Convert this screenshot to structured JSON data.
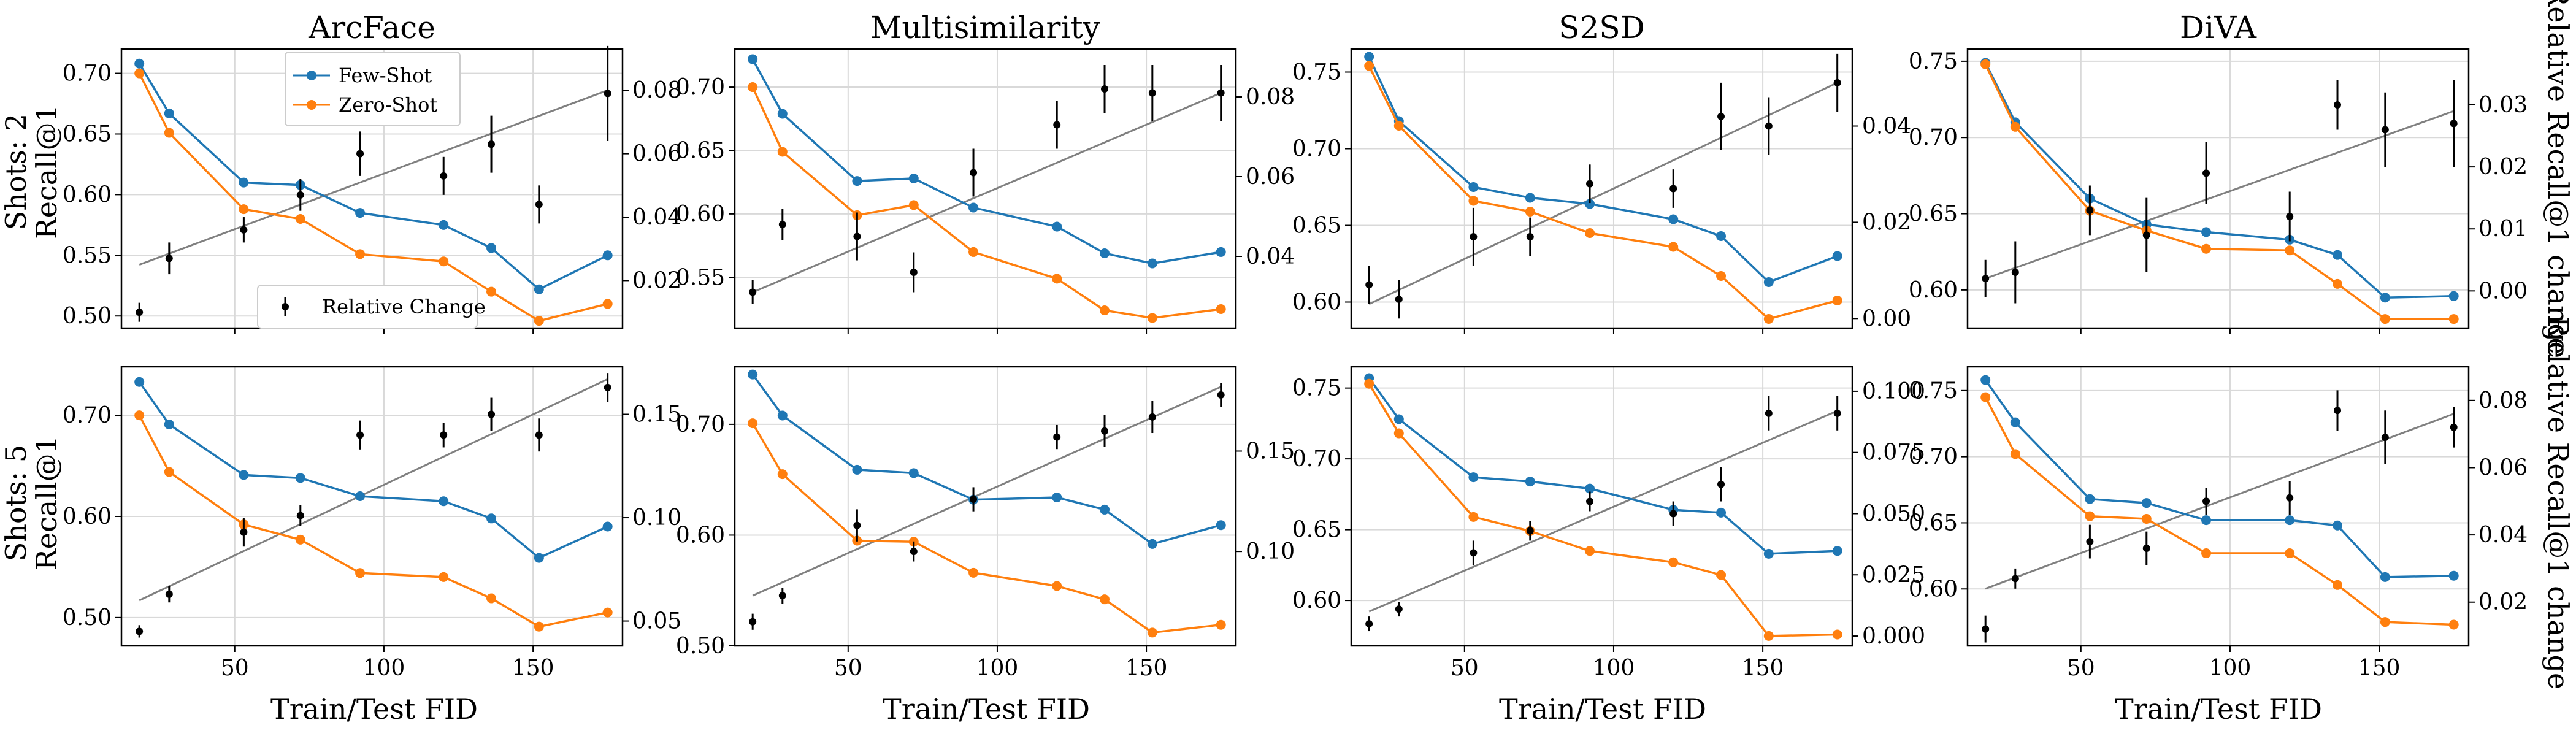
{
  "figure": {
    "colors": {
      "few": "#1f77b4",
      "zero": "#ff7f0e",
      "fit": "#808080",
      "points": "#000000",
      "grid": "#d9d9d9"
    },
    "x_label": "Train/Test FID",
    "x_ticks": [
      50,
      100,
      150
    ],
    "x_range": [
      12,
      180
    ],
    "row_labels": [
      [
        "Shots: 2",
        "Recall@1"
      ],
      [
        "Shots: 5",
        "Recall@1"
      ]
    ],
    "right_axis_label": "Relative Recall@1 change",
    "legend": {
      "few": "Few-Shot",
      "zero": "Zero-Shot",
      "rel": "Relative Change"
    }
  },
  "chart_data": [
    {
      "type": "line",
      "title": "ArcFace",
      "row": 0,
      "col": 0,
      "x": [
        18,
        28,
        53,
        72,
        92,
        120,
        136,
        152,
        175
      ],
      "series": [
        {
          "name": "Few-Shot",
          "values": [
            0.708,
            0.667,
            0.61,
            0.608,
            0.585,
            0.575,
            0.556,
            0.522,
            0.55
          ]
        },
        {
          "name": "Zero-Shot",
          "values": [
            0.7,
            0.651,
            0.588,
            0.58,
            0.551,
            0.545,
            0.52,
            0.496,
            0.51
          ]
        }
      ],
      "relative_change": {
        "name": "Relative Change",
        "values": [
          0.01,
          0.027,
          0.036,
          0.047,
          0.06,
          0.053,
          0.063,
          0.044,
          0.079
        ],
        "errors": [
          0.003,
          0.005,
          0.004,
          0.005,
          0.007,
          0.006,
          0.009,
          0.006,
          0.015
        ]
      },
      "fit": [
        0.025,
        0.08
      ],
      "ylim": [
        0.49,
        0.72
      ],
      "yticks": [
        0.5,
        0.55,
        0.6,
        0.65,
        0.7
      ],
      "y2lim": [
        0.005,
        0.093
      ],
      "y2ticks": [
        0.02,
        0.04,
        0.06,
        0.08
      ]
    },
    {
      "type": "line",
      "title": "Multisimilarity",
      "row": 0,
      "col": 1,
      "x": [
        18,
        28,
        53,
        72,
        92,
        120,
        136,
        152,
        175
      ],
      "series": [
        {
          "name": "Few-Shot",
          "values": [
            0.722,
            0.679,
            0.626,
            0.628,
            0.605,
            0.59,
            0.569,
            0.561,
            0.57
          ]
        },
        {
          "name": "Zero-Shot",
          "values": [
            0.7,
            0.649,
            0.599,
            0.607,
            0.57,
            0.549,
            0.524,
            0.518,
            0.525
          ]
        }
      ],
      "relative_change": {
        "name": "Relative Change",
        "values": [
          0.031,
          0.048,
          0.045,
          0.036,
          0.061,
          0.073,
          0.082,
          0.081,
          0.081
        ],
        "errors": [
          0.003,
          0.004,
          0.006,
          0.005,
          0.006,
          0.006,
          0.006,
          0.007,
          0.007
        ]
      },
      "fit": [
        0.031,
        0.081
      ],
      "ylim": [
        0.51,
        0.73
      ],
      "yticks": [
        0.55,
        0.6,
        0.65,
        0.7
      ],
      "y2lim": [
        0.022,
        0.092
      ],
      "y2ticks": [
        0.04,
        0.06,
        0.08
      ]
    },
    {
      "type": "line",
      "title": "S2SD",
      "row": 0,
      "col": 2,
      "x": [
        18,
        28,
        53,
        72,
        92,
        120,
        136,
        152,
        175
      ],
      "series": [
        {
          "name": "Few-Shot",
          "values": [
            0.76,
            0.718,
            0.675,
            0.668,
            0.664,
            0.654,
            0.643,
            0.613,
            0.63
          ]
        },
        {
          "name": "Zero-Shot",
          "values": [
            0.754,
            0.715,
            0.666,
            0.659,
            0.645,
            0.636,
            0.617,
            0.589,
            0.601
          ]
        }
      ],
      "relative_change": {
        "name": "Relative Change",
        "values": [
          0.007,
          0.004,
          0.017,
          0.017,
          0.028,
          0.027,
          0.042,
          0.04,
          0.049
        ],
        "errors": [
          0.004,
          0.004,
          0.006,
          0.004,
          0.004,
          0.004,
          0.007,
          0.006,
          0.006
        ]
      },
      "fit": [
        0.003,
        0.049
      ],
      "ylim": [
        0.583,
        0.765
      ],
      "yticks": [
        0.6,
        0.65,
        0.7,
        0.75
      ],
      "y2lim": [
        -0.002,
        0.056
      ],
      "y2ticks": [
        0.0,
        0.02,
        0.04
      ]
    },
    {
      "type": "line",
      "title": "DiVA",
      "row": 0,
      "col": 3,
      "x": [
        18,
        28,
        53,
        72,
        92,
        120,
        136,
        152,
        175
      ],
      "series": [
        {
          "name": "Few-Shot",
          "values": [
            0.749,
            0.71,
            0.66,
            0.643,
            0.638,
            0.633,
            0.623,
            0.595,
            0.596
          ]
        },
        {
          "name": "Zero-Shot",
          "values": [
            0.748,
            0.707,
            0.652,
            0.639,
            0.627,
            0.626,
            0.604,
            0.581,
            0.581
          ]
        }
      ],
      "relative_change": {
        "name": "Relative Change",
        "values": [
          0.002,
          0.003,
          0.013,
          0.009,
          0.019,
          0.012,
          0.03,
          0.026,
          0.027
        ],
        "errors": [
          0.003,
          0.005,
          0.004,
          0.006,
          0.005,
          0.004,
          0.004,
          0.006,
          0.007
        ]
      },
      "fit": [
        0.002,
        0.029
      ],
      "ylim": [
        0.575,
        0.758
      ],
      "yticks": [
        0.6,
        0.65,
        0.7,
        0.75
      ],
      "y2lim": [
        -0.006,
        0.039
      ],
      "y2ticks": [
        0.0,
        0.01,
        0.02,
        0.03
      ]
    },
    {
      "type": "line",
      "title": "",
      "row": 1,
      "col": 0,
      "x": [
        18,
        28,
        53,
        72,
        92,
        120,
        136,
        152,
        175
      ],
      "series": [
        {
          "name": "Few-Shot",
          "values": [
            0.733,
            0.691,
            0.641,
            0.638,
            0.62,
            0.615,
            0.598,
            0.559,
            0.59
          ]
        },
        {
          "name": "Zero-Shot",
          "values": [
            0.7,
            0.644,
            0.592,
            0.577,
            0.544,
            0.54,
            0.519,
            0.491,
            0.505
          ]
        }
      ],
      "relative_change": {
        "name": "Relative Change",
        "values": [
          0.045,
          0.063,
          0.093,
          0.101,
          0.14,
          0.14,
          0.15,
          0.14,
          0.163
        ],
        "errors": [
          0.003,
          0.004,
          0.007,
          0.005,
          0.007,
          0.006,
          0.008,
          0.008,
          0.007
        ]
      },
      "fit": [
        0.06,
        0.167
      ],
      "ylim": [
        0.472,
        0.748
      ],
      "yticks": [
        0.5,
        0.6,
        0.7
      ],
      "y2lim": [
        0.038,
        0.173
      ],
      "y2ticks": [
        0.05,
        0.1,
        0.15
      ]
    },
    {
      "type": "line",
      "title": "",
      "row": 1,
      "col": 1,
      "x": [
        18,
        28,
        53,
        72,
        92,
        120,
        136,
        152,
        175
      ],
      "series": [
        {
          "name": "Few-Shot",
          "values": [
            0.745,
            0.708,
            0.659,
            0.656,
            0.632,
            0.634,
            0.623,
            0.592,
            0.609
          ]
        },
        {
          "name": "Zero-Shot",
          "values": [
            0.701,
            0.655,
            0.595,
            0.594,
            0.566,
            0.554,
            0.542,
            0.512,
            0.519
          ]
        }
      ],
      "relative_change": {
        "name": "Relative Change",
        "values": [
          0.065,
          0.078,
          0.113,
          0.1,
          0.126,
          0.157,
          0.16,
          0.167,
          0.178
        ],
        "errors": [
          0.004,
          0.004,
          0.008,
          0.005,
          0.006,
          0.006,
          0.008,
          0.008,
          0.006
        ]
      },
      "fit": [
        0.078,
        0.182
      ],
      "ylim": [
        0.5,
        0.752
      ],
      "yticks": [
        0.5,
        0.6,
        0.7
      ],
      "y2lim": [
        0.053,
        0.192
      ],
      "y2ticks": [
        0.1,
        0.15
      ]
    },
    {
      "type": "line",
      "title": "",
      "row": 1,
      "col": 2,
      "x": [
        18,
        28,
        53,
        72,
        92,
        120,
        136,
        152,
        175
      ],
      "series": [
        {
          "name": "Few-Shot",
          "values": [
            0.757,
            0.728,
            0.687,
            0.684,
            0.679,
            0.664,
            0.662,
            0.633,
            0.635
          ]
        },
        {
          "name": "Zero-Shot",
          "values": [
            0.753,
            0.718,
            0.659,
            0.649,
            0.635,
            0.627,
            0.618,
            0.575,
            0.576
          ]
        }
      ],
      "relative_change": {
        "name": "Relative Change",
        "values": [
          0.005,
          0.011,
          0.034,
          0.043,
          0.055,
          0.05,
          0.062,
          0.091,
          0.091
        ],
        "errors": [
          0.003,
          0.003,
          0.005,
          0.004,
          0.004,
          0.005,
          0.007,
          0.007,
          0.007
        ]
      },
      "fit": [
        0.01,
        0.092
      ],
      "ylim": [
        0.568,
        0.765
      ],
      "yticks": [
        0.6,
        0.65,
        0.7,
        0.75
      ],
      "y2lim": [
        -0.004,
        0.11
      ],
      "y2ticks": [
        0.0,
        0.025,
        0.05,
        0.075,
        0.1
      ]
    },
    {
      "type": "line",
      "title": "",
      "row": 1,
      "col": 3,
      "x": [
        18,
        28,
        53,
        72,
        92,
        120,
        136,
        152,
        175
      ],
      "series": [
        {
          "name": "Few-Shot",
          "values": [
            0.758,
            0.726,
            0.668,
            0.665,
            0.652,
            0.652,
            0.648,
            0.609,
            0.61
          ]
        },
        {
          "name": "Zero-Shot",
          "values": [
            0.745,
            0.702,
            0.655,
            0.653,
            0.627,
            0.627,
            0.603,
            0.575,
            0.573
          ]
        }
      ],
      "relative_change": {
        "name": "Relative Change",
        "values": [
          0.012,
          0.027,
          0.038,
          0.036,
          0.05,
          0.051,
          0.077,
          0.069,
          0.072
        ],
        "errors": [
          0.004,
          0.003,
          0.005,
          0.005,
          0.004,
          0.005,
          0.006,
          0.008,
          0.006
        ]
      },
      "fit": [
        0.024,
        0.076
      ],
      "ylim": [
        0.557,
        0.768
      ],
      "yticks": [
        0.6,
        0.65,
        0.7,
        0.75
      ],
      "y2lim": [
        0.007,
        0.09
      ],
      "y2ticks": [
        0.02,
        0.04,
        0.06,
        0.08
      ]
    }
  ]
}
